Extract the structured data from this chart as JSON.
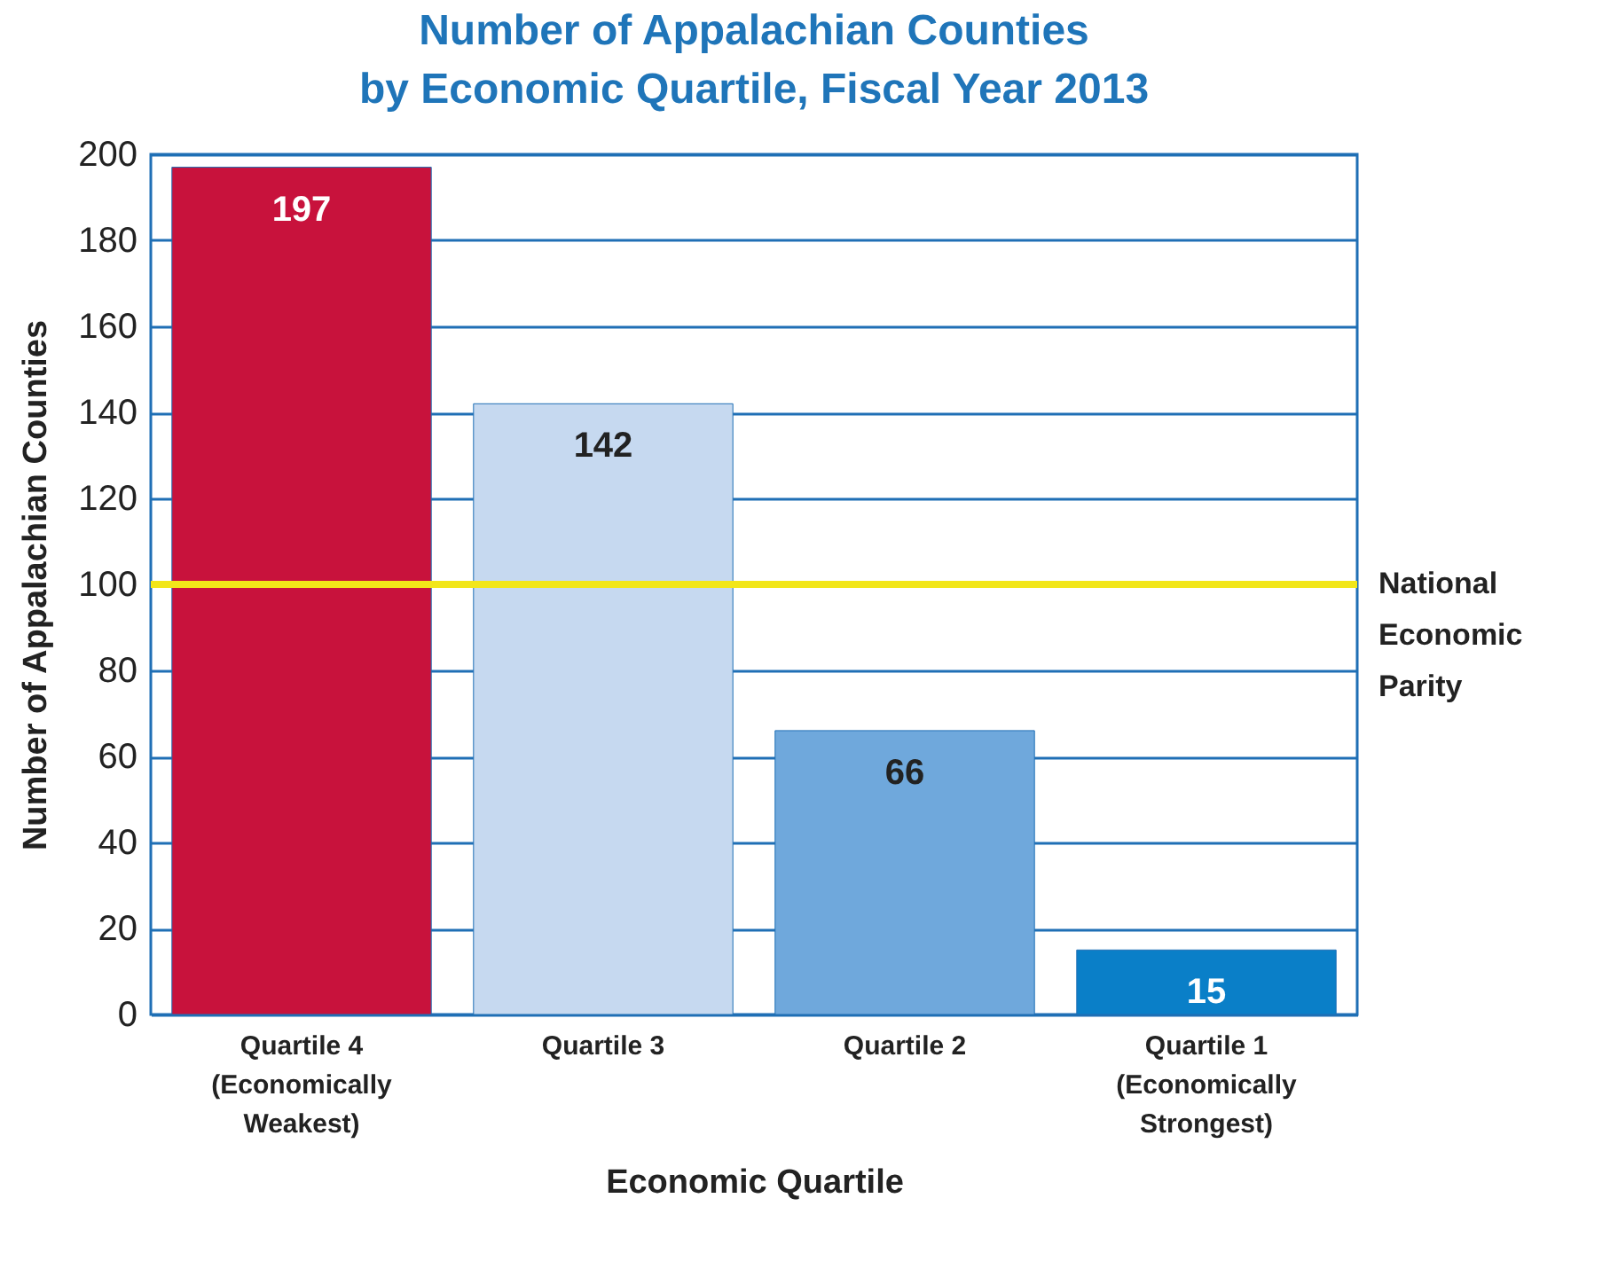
{
  "chart_data": {
    "type": "bar",
    "title": "Number of Appalachian Counties\nby Economic Quartile, Fiscal Year 2013",
    "xlabel": "Economic Quartile",
    "ylabel": "Number of Appalachian Counties",
    "categories": [
      "Quartile 4\n(Economically\nWeakest)",
      "Quartile 3",
      "Quartile 2",
      "Quartile 1\n(Economically\nStrongest)"
    ],
    "values": [
      197,
      142,
      66,
      15
    ],
    "colors": [
      "#c8123c",
      "#c6d9f0",
      "#6fa8dc",
      "#0a7fc8"
    ],
    "ylim": [
      0,
      200
    ],
    "yticks": [
      0,
      20,
      40,
      60,
      80,
      100,
      120,
      140,
      160,
      180,
      200
    ],
    "grid": "y",
    "data_labels": true,
    "ref_lines": [
      {
        "axis": "y",
        "value": 100,
        "label": "National Economic Parity",
        "color": "#f2e619"
      }
    ]
  }
}
